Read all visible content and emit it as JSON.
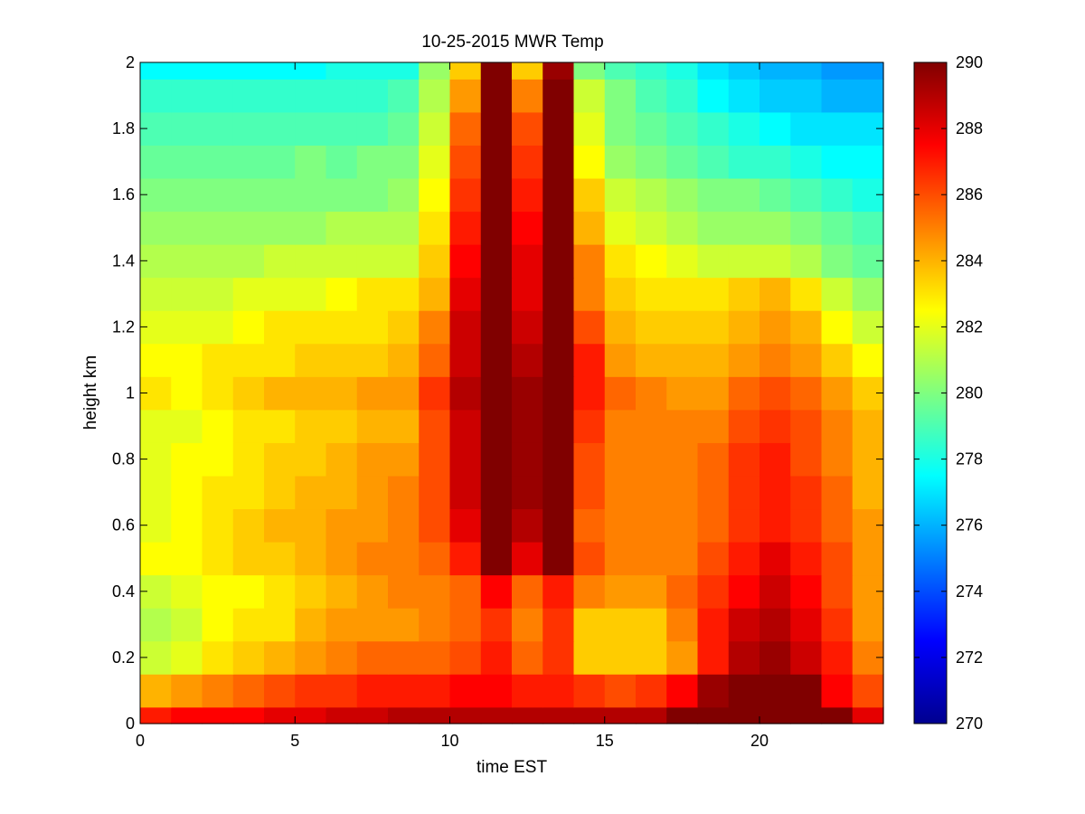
{
  "chart_data": {
    "type": "heatmap",
    "title": "10-25-2015 MWR Temp",
    "xlabel": "time EST",
    "ylabel": "height km",
    "xlim": [
      0,
      24
    ],
    "ylim": [
      0,
      2
    ],
    "x_ticks": [
      0,
      5,
      10,
      15,
      20
    ],
    "y_ticks": [
      0,
      0.2,
      0.4,
      0.6,
      0.8,
      1,
      1.2,
      1.4,
      1.6,
      1.8,
      2
    ],
    "y_tick_labels": [
      "0",
      "0.2",
      "0.4",
      "0.6",
      "0.8",
      "1",
      "1.2",
      "1.4",
      "1.6",
      "1.8",
      "2"
    ],
    "colormap": "jet",
    "color_range": [
      270,
      290
    ],
    "colorbar_ticks": [
      270,
      272,
      274,
      276,
      278,
      280,
      282,
      284,
      286,
      288,
      290
    ],
    "x": [
      0,
      1,
      2,
      3,
      4,
      5,
      6,
      7,
      8,
      9,
      10,
      11,
      12,
      13,
      14,
      15,
      16,
      17,
      18,
      19,
      20,
      21,
      22,
      23
    ],
    "y": [
      0,
      0.1,
      0.2,
      0.3,
      0.4,
      0.5,
      0.6,
      0.7,
      0.8,
      0.9,
      1.0,
      1.1,
      1.2,
      1.3,
      1.4,
      1.5,
      1.6,
      1.7,
      1.8,
      1.9,
      2.0
    ],
    "z": [
      [
        287.0,
        287.5,
        287.5,
        287.5,
        288.0,
        288.0,
        288.5,
        288.5,
        289.0,
        289.0,
        289.0,
        289.0,
        289.0,
        289.0,
        289.0,
        289.0,
        289.0,
        290.0,
        290.0,
        290.0,
        290.0,
        290.0,
        290.0,
        288.0
      ],
      [
        284.0,
        284.5,
        285.0,
        285.5,
        286.0,
        286.5,
        286.5,
        287.0,
        287.0,
        287.0,
        287.5,
        287.5,
        287.0,
        287.0,
        286.5,
        286.0,
        286.5,
        287.5,
        289.5,
        290.0,
        290.0,
        290.0,
        287.5,
        286.0
      ],
      [
        281.5,
        282.0,
        283.0,
        283.5,
        284.0,
        284.5,
        285.0,
        285.5,
        285.5,
        285.5,
        286.0,
        287.0,
        285.5,
        286.5,
        283.5,
        283.5,
        283.5,
        284.5,
        287.0,
        289.0,
        289.5,
        288.5,
        287.0,
        285.0
      ],
      [
        281.0,
        281.5,
        282.5,
        283.0,
        283.0,
        284.0,
        284.5,
        284.5,
        284.5,
        285.0,
        285.5,
        286.5,
        285.0,
        286.5,
        283.5,
        283.5,
        283.5,
        285.0,
        287.0,
        288.5,
        289.0,
        288.0,
        286.5,
        284.5
      ],
      [
        281.5,
        282.0,
        282.5,
        282.5,
        283.0,
        283.5,
        284.0,
        284.5,
        285.0,
        285.0,
        285.5,
        287.5,
        285.5,
        287.0,
        285.0,
        284.5,
        284.5,
        285.5,
        286.5,
        287.5,
        288.5,
        287.5,
        286.0,
        284.5
      ],
      [
        282.5,
        282.5,
        283.0,
        283.5,
        283.5,
        284.0,
        284.5,
        285.0,
        285.0,
        285.5,
        287.0,
        290.0,
        288.0,
        290.0,
        286.0,
        285.0,
        285.0,
        285.0,
        286.0,
        287.0,
        288.0,
        287.0,
        286.0,
        284.5
      ],
      [
        282.0,
        282.5,
        283.0,
        283.5,
        284.0,
        284.0,
        284.5,
        284.5,
        285.0,
        286.0,
        288.0,
        290.0,
        289.0,
        290.0,
        285.5,
        285.0,
        285.0,
        285.0,
        285.5,
        286.5,
        287.0,
        286.5,
        285.5,
        284.5
      ],
      [
        282.0,
        282.5,
        283.0,
        283.0,
        283.5,
        284.0,
        284.0,
        284.5,
        285.0,
        286.0,
        288.5,
        290.0,
        289.5,
        290.0,
        286.0,
        285.0,
        285.0,
        285.0,
        285.5,
        286.5,
        287.0,
        286.5,
        285.5,
        284.0
      ],
      [
        282.0,
        282.5,
        282.5,
        283.0,
        283.5,
        283.5,
        284.0,
        284.5,
        284.5,
        286.0,
        288.5,
        290.0,
        289.5,
        290.0,
        286.0,
        285.0,
        285.0,
        285.0,
        285.5,
        286.5,
        287.0,
        286.0,
        285.0,
        284.0
      ],
      [
        282.0,
        282.0,
        282.5,
        283.0,
        283.0,
        283.5,
        283.5,
        284.0,
        284.0,
        286.0,
        288.5,
        290.0,
        289.5,
        290.0,
        286.5,
        285.0,
        285.0,
        285.0,
        285.0,
        286.0,
        286.5,
        286.0,
        285.0,
        284.0
      ],
      [
        283.0,
        282.5,
        283.0,
        283.5,
        284.0,
        284.0,
        284.0,
        284.5,
        284.5,
        286.5,
        289.0,
        290.0,
        289.5,
        290.0,
        287.0,
        285.5,
        285.0,
        284.5,
        284.5,
        285.5,
        286.0,
        285.5,
        284.5,
        283.5
      ],
      [
        282.5,
        282.5,
        283.0,
        283.0,
        283.0,
        283.5,
        283.5,
        283.5,
        284.0,
        285.5,
        288.5,
        290.0,
        289.0,
        290.0,
        287.0,
        284.5,
        284.0,
        284.0,
        284.0,
        284.5,
        285.0,
        284.5,
        283.5,
        282.5
      ],
      [
        282.0,
        282.0,
        282.0,
        282.5,
        283.0,
        283.0,
        283.0,
        283.0,
        283.5,
        285.0,
        288.5,
        290.0,
        288.5,
        290.0,
        286.0,
        284.0,
        283.5,
        283.5,
        283.5,
        284.0,
        284.5,
        284.0,
        282.5,
        281.5
      ],
      [
        281.5,
        281.5,
        281.5,
        282.0,
        282.0,
        282.0,
        282.5,
        283.0,
        283.0,
        284.0,
        288.0,
        290.0,
        288.0,
        290.0,
        285.0,
        283.5,
        283.0,
        283.0,
        283.0,
        283.5,
        284.0,
        283.0,
        281.5,
        280.5
      ],
      [
        281.0,
        281.0,
        281.0,
        281.0,
        281.5,
        281.5,
        281.5,
        281.5,
        281.5,
        283.5,
        287.5,
        290.0,
        288.0,
        290.0,
        285.0,
        283.0,
        282.5,
        282.0,
        281.5,
        281.5,
        281.5,
        281.0,
        280.0,
        279.5
      ],
      [
        280.5,
        280.5,
        280.5,
        280.5,
        280.5,
        280.5,
        281.0,
        281.0,
        281.0,
        283.0,
        287.0,
        290.0,
        287.5,
        290.0,
        284.0,
        282.0,
        281.5,
        281.0,
        280.5,
        280.5,
        280.5,
        280.0,
        279.5,
        279.0
      ],
      [
        280.0,
        280.0,
        280.0,
        280.0,
        280.0,
        280.0,
        280.0,
        280.0,
        280.5,
        282.5,
        286.5,
        290.0,
        287.0,
        290.0,
        283.5,
        281.5,
        281.0,
        280.5,
        280.0,
        280.0,
        279.5,
        279.0,
        278.5,
        278.0
      ],
      [
        279.5,
        279.5,
        279.5,
        279.5,
        279.5,
        280.0,
        279.5,
        280.0,
        280.0,
        282.0,
        286.0,
        290.0,
        286.5,
        290.0,
        282.5,
        280.5,
        280.0,
        279.5,
        279.0,
        278.5,
        278.5,
        278.0,
        277.5,
        277.5
      ],
      [
        279.0,
        279.0,
        279.0,
        279.0,
        279.0,
        279.0,
        279.0,
        279.0,
        279.5,
        281.5,
        285.5,
        290.0,
        286.0,
        290.0,
        282.0,
        280.0,
        279.5,
        279.0,
        278.5,
        278.0,
        277.5,
        277.0,
        277.0,
        277.0
      ],
      [
        278.5,
        278.5,
        278.5,
        278.5,
        278.5,
        278.5,
        278.5,
        278.5,
        279.0,
        281.0,
        284.5,
        290.0,
        285.0,
        290.0,
        281.5,
        280.0,
        279.0,
        278.5,
        277.5,
        277.0,
        276.5,
        276.5,
        276.0,
        276.0
      ],
      [
        277.5,
        277.5,
        277.5,
        277.5,
        277.5,
        277.5,
        278.0,
        278.0,
        278.0,
        280.5,
        283.5,
        290.0,
        283.5,
        289.5,
        280.0,
        279.0,
        278.5,
        278.0,
        277.0,
        276.5,
        276.0,
        276.0,
        275.5,
        275.5
      ]
    ]
  }
}
